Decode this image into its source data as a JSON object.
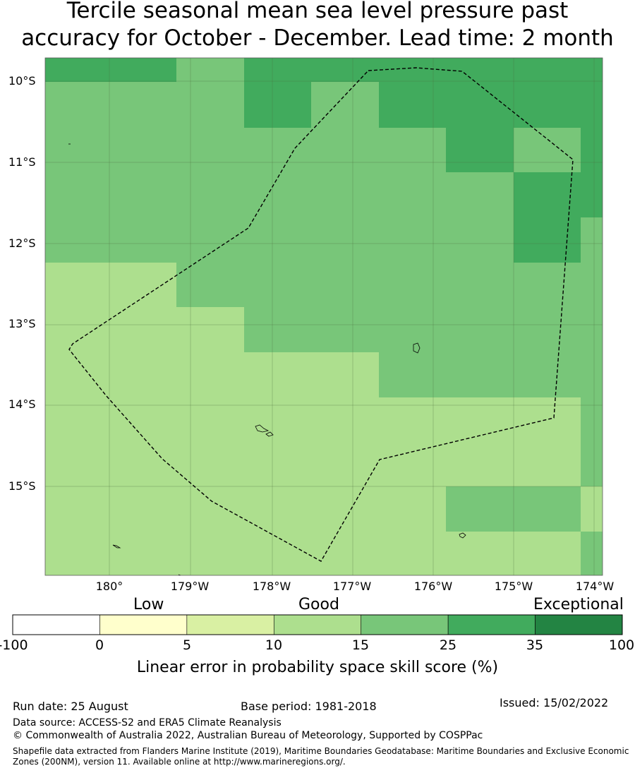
{
  "title": {
    "line1": "Tercile seasonal mean sea level pressure past",
    "line2": "accuracy for October - December. Lead time: 2 month"
  },
  "map": {
    "lat_labels": [
      "10°S",
      "11°S",
      "12°S",
      "13°S",
      "14°S",
      "15°S"
    ],
    "lon_labels": [
      "180°",
      "179°W",
      "178°W",
      "177°W",
      "176°W",
      "175°W",
      "174°W"
    ],
    "grid": true,
    "boundary_style": "dashed",
    "colors": {
      "cat_10_15": "#addf8e",
      "cat_15_25": "#78c679",
      "cat_25_35": "#41ab5d",
      "grid_line": "#4a6b3a",
      "boundary": "#000000"
    }
  },
  "colorbar": {
    "category_labels": [
      "Low",
      "Good",
      "Exceptional"
    ],
    "ticks": [
      "-100",
      "0",
      "5",
      "10",
      "15",
      "25",
      "35",
      "100"
    ],
    "colors": [
      "#ffffff",
      "#ffffcc",
      "#d9f0a3",
      "#addf8e",
      "#78c679",
      "#41ab5d",
      "#238443"
    ],
    "label": "Linear error in probability space skill score (%)"
  },
  "footer": {
    "run_date": "Run date: 25 August",
    "base_period": "Base period: 1981-2018",
    "issued": "Issued: 15/02/2022",
    "data_source": "Data source: ACCESS-S2 and ERA5 Climate Reanalysis",
    "copyright": "© Commonwealth of Australia 2022, Australian Bureau of Meteorology, Supported by COSPPac",
    "shapefile": "Shapefile data extracted from Flanders Marine Institute (2019), Maritime Boundaries Geodatabase: Maritime Boundaries and Exclusive Economic Zones (200NM), version 11. Available online at http://www.marineregions.org/."
  }
}
